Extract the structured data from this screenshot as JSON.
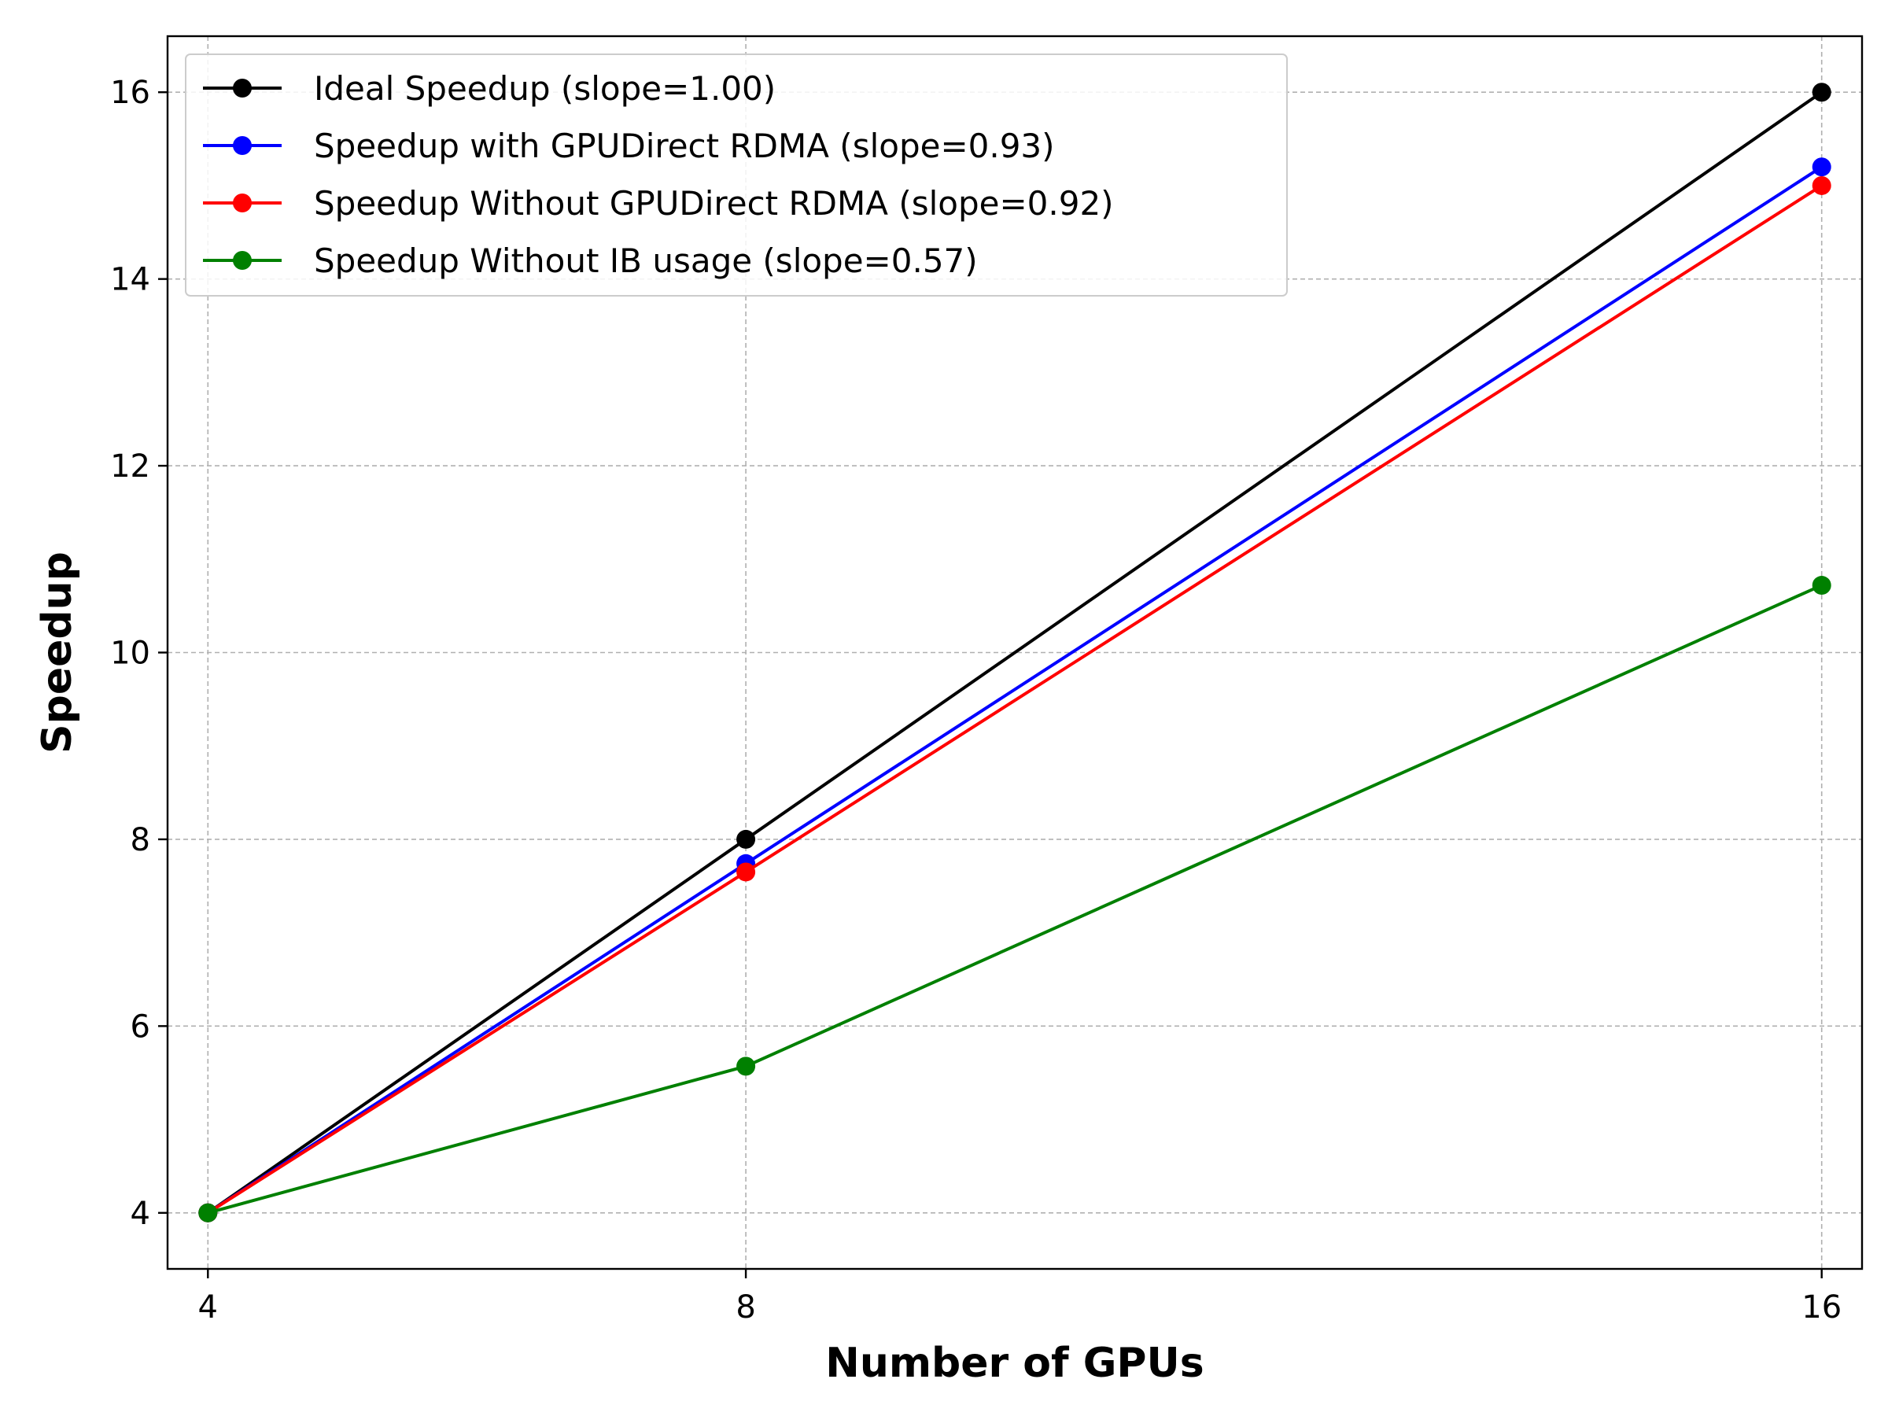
{
  "chart_data": {
    "type": "line",
    "title": "",
    "xlabel": "Number of GPUs",
    "ylabel": "Speedup",
    "x": [
      4,
      8,
      16
    ],
    "x_ticks": [
      "4",
      "8",
      "16"
    ],
    "y_ticks": [
      "4",
      "6",
      "8",
      "10",
      "12",
      "14",
      "16"
    ],
    "xlim": [
      3.7,
      16.3
    ],
    "ylim": [
      3.4,
      16.6
    ],
    "grid": true,
    "legend_position": "top-left",
    "series": [
      {
        "name": "Ideal Speedup (slope=1.00)",
        "color": "#000000",
        "values": [
          4,
          8,
          16
        ]
      },
      {
        "name": "Speedup with GPUDirect RDMA (slope=0.93)",
        "color": "#0000ff",
        "values": [
          4,
          7.74,
          15.2
        ]
      },
      {
        "name": "Speedup Without GPUDirect RDMA (slope=0.92)",
        "color": "#ff0000",
        "values": [
          4,
          7.65,
          15.0
        ]
      },
      {
        "name": "Speedup Without IB usage (slope=0.57)",
        "color": "#008000",
        "values": [
          4,
          5.57,
          10.72
        ]
      }
    ]
  }
}
